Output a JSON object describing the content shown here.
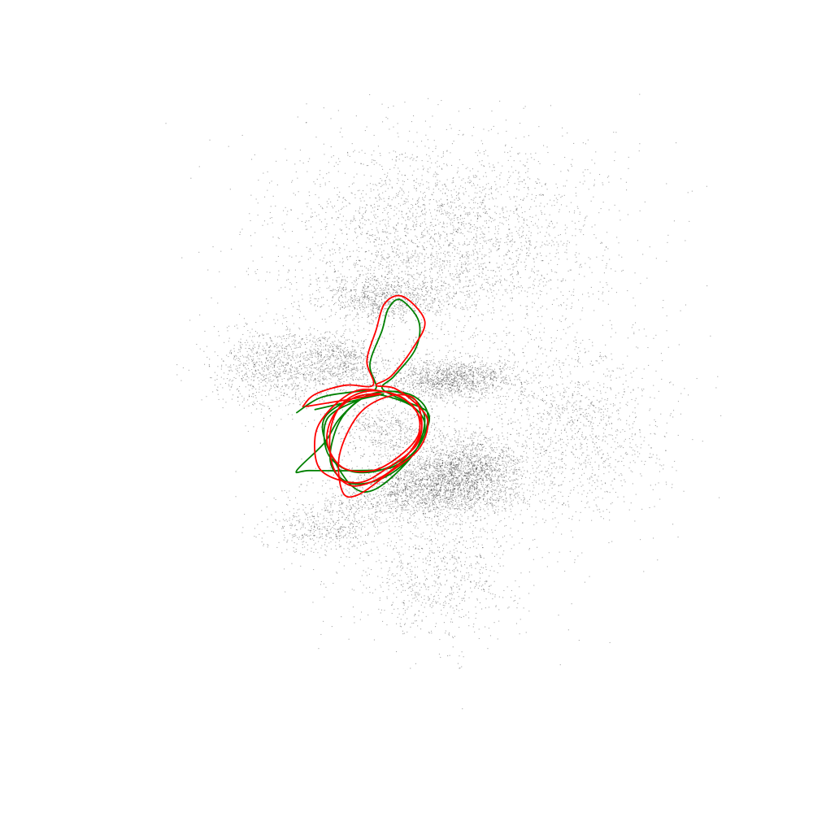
{
  "chart_data": {
    "type": "scatter",
    "title": "",
    "xlabel": "",
    "ylabel": "",
    "axes_visible": false,
    "grid": false,
    "legend": "none",
    "xlim": [
      -1.0,
      1.0
    ],
    "ylim": [
      -1.0,
      1.0
    ],
    "point_cloud": {
      "color": "#000000",
      "approx_point_count": 14000,
      "clusters": [
        {
          "cx": 0.12,
          "cy": 0.55,
          "sx": 0.26,
          "sy": 0.17,
          "weight": 0.22
        },
        {
          "cx": -0.06,
          "cy": 0.36,
          "sx": 0.1,
          "sy": 0.04,
          "weight": 0.06
        },
        {
          "cx": -0.44,
          "cy": 0.13,
          "sx": 0.1,
          "sy": 0.07,
          "weight": 0.07
        },
        {
          "cx": -0.22,
          "cy": 0.15,
          "sx": 0.07,
          "sy": 0.05,
          "weight": 0.05
        },
        {
          "cx": 0.14,
          "cy": 0.09,
          "sx": 0.11,
          "sy": 0.035,
          "weight": 0.1
        },
        {
          "cx": 0.08,
          "cy": -0.27,
          "sx": 0.15,
          "sy": 0.05,
          "weight": 0.16
        },
        {
          "cx": 0.2,
          "cy": -0.19,
          "sx": 0.09,
          "sy": 0.05,
          "weight": 0.09
        },
        {
          "cx": 0.56,
          "cy": -0.07,
          "sx": 0.15,
          "sy": 0.15,
          "weight": 0.09
        },
        {
          "cx": -0.06,
          "cy": -0.07,
          "sx": 0.09,
          "sy": 0.05,
          "weight": 0.04
        },
        {
          "cx": 0.1,
          "cy": -0.55,
          "sx": 0.14,
          "sy": 0.11,
          "weight": 0.06
        },
        {
          "cx": -0.26,
          "cy": -0.39,
          "sx": 0.1,
          "sy": 0.05,
          "weight": 0.04
        },
        {
          "cx": 0.12,
          "cy": 0.05,
          "sx": 0.4,
          "sy": 0.45,
          "weight": 0.02
        }
      ]
    },
    "series": [
      {
        "color": "#008000",
        "points": [
          [
            -0.36,
            -0.02
          ],
          [
            -0.28,
            0.03
          ],
          [
            -0.16,
            0.05
          ],
          [
            -0.1,
            0.06
          ],
          [
            -0.12,
            0.14
          ],
          [
            -0.08,
            0.25
          ],
          [
            -0.06,
            0.32
          ],
          [
            -0.02,
            0.35
          ],
          [
            0.04,
            0.28
          ],
          [
            0.03,
            0.19
          ],
          [
            -0.04,
            0.1
          ],
          [
            -0.08,
            0.06
          ],
          [
            -0.01,
            0.02
          ],
          [
            0.07,
            -0.02
          ],
          [
            0.06,
            -0.09
          ],
          [
            0.0,
            -0.18
          ],
          [
            -0.09,
            -0.24
          ],
          [
            -0.19,
            -0.25
          ],
          [
            -0.25,
            -0.18
          ],
          [
            -0.22,
            -0.05
          ],
          [
            -0.14,
            0.03
          ],
          [
            -0.05,
            0.05
          ],
          [
            0.03,
            0.03
          ],
          [
            0.07,
            -0.03
          ],
          [
            0.04,
            -0.13
          ],
          [
            -0.05,
            -0.2
          ],
          [
            -0.18,
            -0.21
          ],
          [
            -0.32,
            -0.21
          ],
          [
            -0.36,
            -0.21
          ],
          [
            -0.27,
            -0.12
          ],
          [
            -0.22,
            -0.04
          ],
          [
            -0.14,
            0.03
          ],
          [
            -0.05,
            0.05
          ],
          [
            0.03,
            0.02
          ],
          [
            0.06,
            -0.05
          ],
          [
            0.02,
            -0.16
          ],
          [
            -0.1,
            -0.27
          ],
          [
            -0.18,
            -0.26
          ],
          [
            -0.26,
            -0.13
          ],
          [
            -0.27,
            -0.04
          ],
          [
            -0.19,
            0.02
          ],
          [
            -0.1,
            0.04
          ],
          [
            0.02,
            0.0
          ],
          [
            0.06,
            -0.07
          ],
          [
            0.0,
            -0.16
          ],
          [
            -0.09,
            -0.21
          ],
          [
            -0.19,
            -0.21
          ],
          [
            -0.26,
            -0.15
          ],
          [
            -0.26,
            -0.04
          ],
          [
            -0.16,
            0.02
          ],
          [
            -0.08,
            0.04
          ],
          [
            -0.3,
            -0.01
          ]
        ]
      },
      {
        "color": "#ff0000",
        "points": [
          [
            -0.34,
            0.0
          ],
          [
            -0.3,
            0.04
          ],
          [
            -0.2,
            0.07
          ],
          [
            -0.11,
            0.07
          ],
          [
            -0.13,
            0.15
          ],
          [
            -0.1,
            0.25
          ],
          [
            -0.07,
            0.34
          ],
          [
            -0.01,
            0.36
          ],
          [
            0.06,
            0.28
          ],
          [
            0.02,
            0.19
          ],
          [
            -0.05,
            0.1
          ],
          [
            -0.1,
            0.07
          ],
          [
            -0.04,
            0.06
          ],
          [
            0.03,
            0.01
          ],
          [
            0.07,
            -0.05
          ],
          [
            0.04,
            -0.14
          ],
          [
            -0.06,
            -0.22
          ],
          [
            -0.16,
            -0.29
          ],
          [
            -0.21,
            -0.28
          ],
          [
            -0.22,
            -0.16
          ],
          [
            -0.16,
            -0.03
          ],
          [
            -0.07,
            0.03
          ],
          [
            0.02,
            0.03
          ],
          [
            0.05,
            -0.05
          ],
          [
            0.03,
            -0.13
          ],
          [
            -0.06,
            -0.2
          ],
          [
            -0.16,
            -0.25
          ],
          [
            -0.28,
            -0.21
          ],
          [
            -0.3,
            -0.1
          ],
          [
            -0.26,
            -0.02
          ],
          [
            -0.17,
            0.05
          ],
          [
            -0.08,
            0.05
          ],
          [
            0.0,
            0.02
          ],
          [
            0.05,
            -0.06
          ],
          [
            0.01,
            -0.15
          ],
          [
            -0.08,
            -0.23
          ],
          [
            -0.18,
            -0.26
          ],
          [
            -0.24,
            -0.2
          ],
          [
            -0.25,
            -0.08
          ],
          [
            -0.21,
            0.01
          ],
          [
            -0.13,
            0.05
          ],
          [
            -0.04,
            0.04
          ],
          [
            0.03,
            -0.01
          ],
          [
            0.04,
            -0.09
          ],
          [
            -0.02,
            -0.16
          ],
          [
            -0.11,
            -0.21
          ],
          [
            -0.21,
            -0.2
          ],
          [
            -0.26,
            -0.12
          ],
          [
            -0.24,
            -0.03
          ],
          [
            -0.17,
            0.03
          ],
          [
            -0.09,
            0.04
          ],
          [
            -0.33,
            0.0
          ]
        ]
      }
    ]
  }
}
